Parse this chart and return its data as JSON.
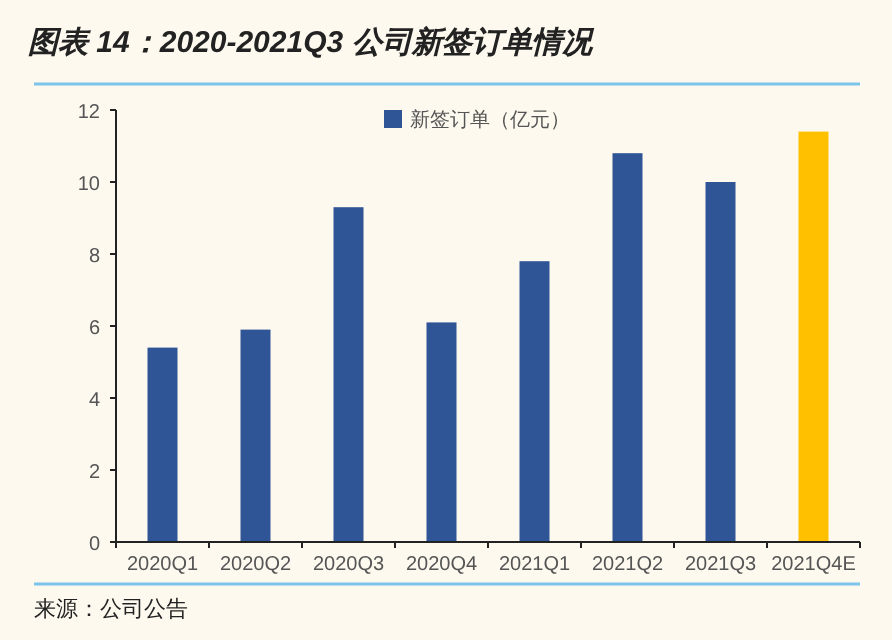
{
  "chart_data": {
    "type": "bar",
    "title": "图表 14：2020-2021Q3 公司新签订单情况",
    "categories": [
      "2020Q1",
      "2020Q2",
      "2020Q3",
      "2020Q4",
      "2021Q1",
      "2021Q2",
      "2021Q3",
      "2021Q4E"
    ],
    "series": [
      {
        "name": "新签订单（亿元）",
        "color": "#2f5597",
        "colors": [
          "#2f5597",
          "#2f5597",
          "#2f5597",
          "#2f5597",
          "#2f5597",
          "#2f5597",
          "#2f5597",
          "#ffc000"
        ],
        "values": [
          5.4,
          5.9,
          9.3,
          6.1,
          7.8,
          10.8,
          10.0,
          11.4
        ]
      }
    ],
    "ylim": [
      0,
      12
    ],
    "yticks": [
      0,
      2,
      4,
      6,
      8,
      10,
      12
    ],
    "grid": false,
    "legend": "top",
    "annotations": [
      "来源：公司公告"
    ]
  }
}
